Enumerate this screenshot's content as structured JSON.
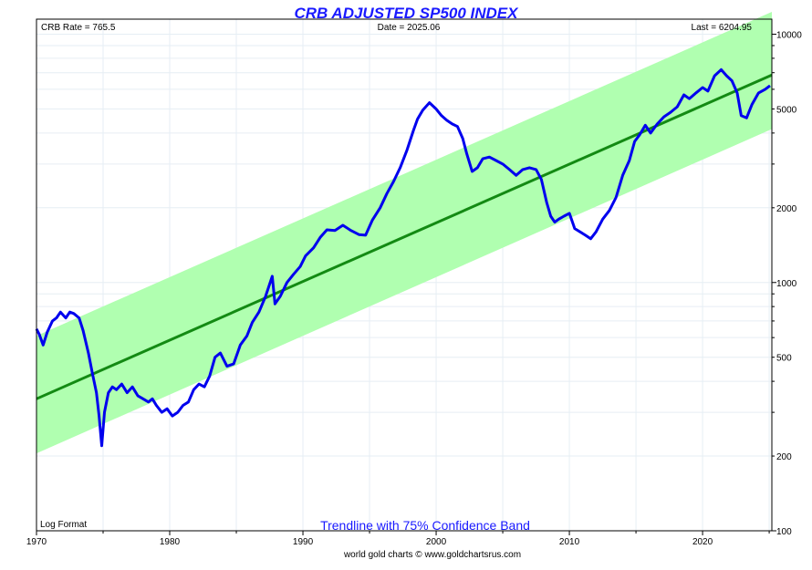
{
  "chart_data": {
    "type": "line",
    "title": "CRB ADJUSTED SP500 INDEX",
    "info": {
      "crb_rate": "CRB Rate = 765.5",
      "date": "Date = 2025.06",
      "last": "Last = 6204.95",
      "scale_note": "Log Format"
    },
    "band_label": "Trendline with 75% Confidence Band",
    "credit": "world gold charts © www.goldchartsrus.com",
    "log_scale": true,
    "grid": true,
    "xlim": [
      1970,
      2025.2
    ],
    "ylim": [
      100,
      11500
    ],
    "x_ticks": [
      {
        "value": 1970,
        "label": "1970"
      },
      {
        "value": 1980,
        "label": "1980"
      },
      {
        "value": 1990,
        "label": "1990"
      },
      {
        "value": 2000,
        "label": "2000"
      },
      {
        "value": 2010,
        "label": "2010"
      },
      {
        "value": 2020,
        "label": "2020"
      }
    ],
    "y_ticks": [
      {
        "value": 100,
        "label": "100"
      },
      {
        "value": 200,
        "label": "200"
      },
      {
        "value": 500,
        "label": "500"
      },
      {
        "value": 1000,
        "label": "1000"
      },
      {
        "value": 2000,
        "label": "2000"
      },
      {
        "value": 5000,
        "label": "5000"
      },
      {
        "value": 10000,
        "label": "10000"
      }
    ],
    "trendline": {
      "x": [
        1970,
        2025.2
      ],
      "y": [
        340,
        6850
      ]
    },
    "band_upper": {
      "x": [
        1970,
        2025.2
      ],
      "y": [
        610,
        12300
      ]
    },
    "band_lower": {
      "x": [
        1970,
        2025.2
      ],
      "y": [
        205,
        4150
      ]
    },
    "series": [
      {
        "color": "#0000ee",
        "x": [
          1970.0,
          1970.2,
          1970.5,
          1970.8,
          1971.2,
          1971.5,
          1971.8,
          1972.2,
          1972.5,
          1972.8,
          1973.2,
          1973.5,
          1973.9,
          1974.2,
          1974.5,
          1974.7,
          1974.9,
          1975.1,
          1975.4,
          1975.7,
          1976.0,
          1976.4,
          1976.8,
          1977.2,
          1977.6,
          1978.0,
          1978.4,
          1978.7,
          1979.0,
          1979.4,
          1979.8,
          1980.2,
          1980.6,
          1981.0,
          1981.4,
          1981.8,
          1982.2,
          1982.6,
          1983.0,
          1983.4,
          1983.8,
          1984.3,
          1984.8,
          1985.3,
          1985.8,
          1986.2,
          1986.7,
          1987.2,
          1987.7,
          1987.9,
          1988.3,
          1988.8,
          1989.3,
          1989.8,
          1990.2,
          1990.8,
          1991.3,
          1991.8,
          1992.4,
          1993.0,
          1993.6,
          1994.2,
          1994.7,
          1995.2,
          1995.8,
          1996.3,
          1996.8,
          1997.3,
          1997.8,
          1998.3,
          1998.6,
          1999.0,
          1999.5,
          2000.0,
          2000.4,
          2000.8,
          2001.2,
          2001.6,
          2002.0,
          2002.3,
          2002.7,
          2003.1,
          2003.5,
          2004.0,
          2004.5,
          2005.0,
          2005.5,
          2006.0,
          2006.5,
          2007.0,
          2007.5,
          2007.9,
          2008.3,
          2008.6,
          2008.9,
          2009.2,
          2009.6,
          2010.0,
          2010.4,
          2010.8,
          2011.2,
          2011.6,
          2012.0,
          2012.5,
          2013.0,
          2013.5,
          2014.0,
          2014.5,
          2014.9,
          2015.3,
          2015.7,
          2016.1,
          2016.6,
          2017.1,
          2017.6,
          2018.1,
          2018.6,
          2019.0,
          2019.5,
          2020.0,
          2020.4,
          2020.9,
          2021.4,
          2021.8,
          2022.2,
          2022.6,
          2022.9,
          2023.3,
          2023.7,
          2024.2,
          2024.7,
          2025.06
        ],
        "y": [
          650,
          620,
          560,
          630,
          700,
          720,
          760,
          720,
          760,
          750,
          720,
          640,
          520,
          430,
          360,
          290,
          220,
          300,
          360,
          380,
          370,
          390,
          360,
          380,
          350,
          340,
          330,
          340,
          320,
          300,
          310,
          290,
          300,
          320,
          330,
          370,
          390,
          380,
          420,
          500,
          520,
          460,
          470,
          560,
          610,
          690,
          760,
          880,
          1060,
          820,
          880,
          1000,
          1080,
          1160,
          1280,
          1380,
          1520,
          1630,
          1620,
          1700,
          1620,
          1560,
          1550,
          1780,
          2000,
          2280,
          2550,
          2900,
          3400,
          4100,
          4550,
          4950,
          5300,
          5000,
          4700,
          4500,
          4350,
          4250,
          3800,
          3300,
          2800,
          2900,
          3150,
          3200,
          3100,
          3000,
          2850,
          2700,
          2850,
          2900,
          2850,
          2600,
          2100,
          1850,
          1750,
          1800,
          1850,
          1900,
          1650,
          1600,
          1550,
          1500,
          1600,
          1800,
          1950,
          2200,
          2700,
          3100,
          3700,
          3950,
          4300,
          4000,
          4350,
          4650,
          4850,
          5100,
          5700,
          5500,
          5800,
          6100,
          5900,
          6800,
          7200,
          6800,
          6500,
          5800,
          4700,
          4600,
          5200,
          5800,
          6000,
          6204.95
        ]
      }
    ]
  }
}
